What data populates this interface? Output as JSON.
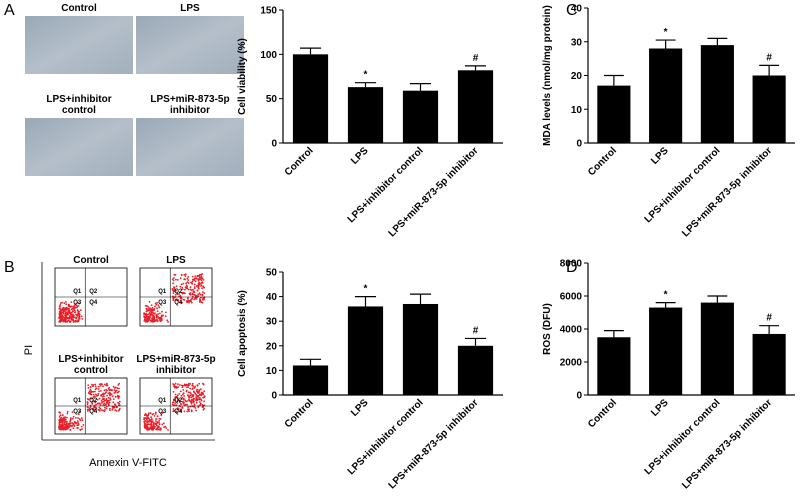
{
  "panels": {
    "letters": [
      "A",
      "B",
      "C",
      "D"
    ],
    "micrographs": [
      {
        "lines": [
          "Control"
        ]
      },
      {
        "lines": [
          "LPS"
        ]
      },
      {
        "lines": [
          "LPS+inhibitor",
          "control"
        ]
      },
      {
        "lines": [
          "LPS+miR-873-5p",
          "inhibitor"
        ]
      }
    ],
    "flow": {
      "plots": [
        {
          "lines": [
            "Control"
          ]
        },
        {
          "lines": [
            "LPS"
          ]
        },
        {
          "lines": [
            "LPS+inhibitor",
            "control"
          ]
        },
        {
          "lines": [
            "LPS+miR-873-5p",
            "inhibitor"
          ]
        }
      ],
      "quadrants": [
        "Q1",
        "Q2",
        "Q3",
        "Q4"
      ],
      "ylabel": "PI",
      "xlabel": "Annexin V-FITC"
    }
  },
  "chart_data": [
    {
      "type": "bar",
      "ylabel": "Cell viability (%)",
      "categories": [
        "Control",
        "LPS",
        "LPS+inhibitor control",
        "LPS+miR-873-5p inhibitor"
      ],
      "values": [
        100,
        63,
        59,
        82
      ],
      "errors": [
        7,
        5,
        8,
        5
      ],
      "markers": [
        null,
        "*",
        null,
        "#"
      ],
      "color": "#000000",
      "ylim": [
        0,
        150
      ],
      "yticks": [
        0,
        50,
        100,
        150
      ]
    },
    {
      "type": "bar",
      "ylabel": "MDA levels (nmol/mg protein)",
      "categories": [
        "Control",
        "LPS",
        "LPS+inhibitor control",
        "LPS+miR-873-5p inhibitor"
      ],
      "values": [
        17,
        28,
        29,
        20
      ],
      "errors": [
        3,
        2.5,
        2,
        3
      ],
      "markers": [
        null,
        "*",
        null,
        "#"
      ],
      "color": "#000000",
      "ylim": [
        0,
        40
      ],
      "yticks": [
        0,
        10,
        20,
        30,
        40
      ]
    },
    {
      "type": "bar",
      "ylabel": "Cell apoptosis (%)",
      "categories": [
        "Control",
        "LPS",
        "LPS+inhibitor control",
        "LPS+miR-873-5p inhibitor"
      ],
      "values": [
        12,
        36,
        37,
        20
      ],
      "errors": [
        2.5,
        4,
        4,
        3
      ],
      "markers": [
        null,
        "*",
        null,
        "#"
      ],
      "color": "#000000",
      "ylim": [
        0,
        50
      ],
      "yticks": [
        0,
        10,
        20,
        30,
        40,
        50
      ]
    },
    {
      "type": "bar",
      "ylabel": "ROS (DFU)",
      "categories": [
        "Control",
        "LPS",
        "LPS+inhibitor control",
        "LPS+miR-873-5p inhibitor"
      ],
      "values": [
        3500,
        5300,
        5600,
        3700
      ],
      "errors": [
        400,
        300,
        400,
        500
      ],
      "markers": [
        null,
        "*",
        null,
        "#"
      ],
      "color": "#000000",
      "ylim": [
        0,
        8000
      ],
      "yticks": [
        0,
        2000,
        4000,
        6000,
        8000
      ]
    }
  ]
}
